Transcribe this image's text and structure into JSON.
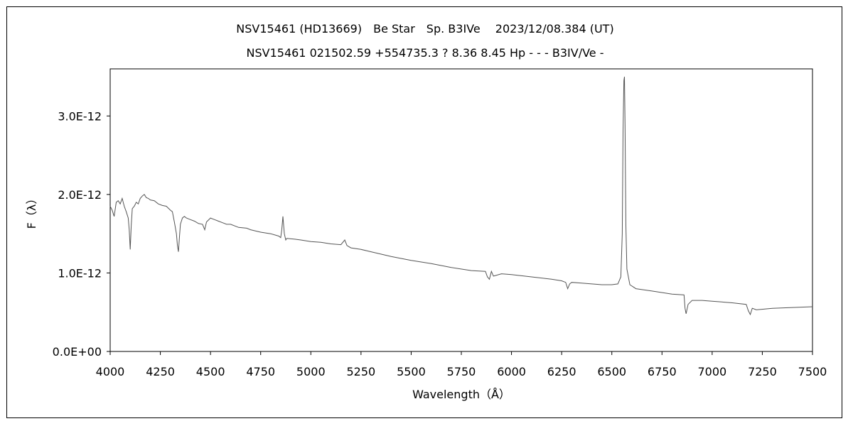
{
  "chart_data": {
    "type": "line",
    "title": "NSV15461 (HD13669)　Be Star　Sp. B3IVe　 2023/12/08.384 (UT)",
    "subtitle": "NSV15461 021502.59 +554735.3 ? 8.36 8.45 Hp - - - B3IV/Ve -",
    "xlabel": "Wavelength（Å）",
    "ylabel": "F（λ）",
    "xlim": [
      4000,
      7500
    ],
    "ylim": [
      0,
      3.6e-12
    ],
    "grid": false,
    "x_ticks": [
      4000,
      4250,
      4500,
      4750,
      5000,
      5250,
      5500,
      5750,
      6000,
      6250,
      6500,
      6750,
      7000,
      7250,
      7500
    ],
    "x_tick_labels": [
      "4000",
      "4250",
      "4500",
      "4750",
      "5000",
      "5250",
      "5500",
      "5750",
      "6000",
      "6250",
      "6500",
      "6750",
      "7000",
      "7250",
      "7500"
    ],
    "y_ticks": [
      0,
      1e-12,
      2e-12,
      3e-12
    ],
    "y_tick_labels": [
      "0.0E+00",
      "1.0E-12",
      "2.0E-12",
      "3.0E-12"
    ],
    "series": [
      {
        "color": "#555555",
        "x": [
          4000,
          4010,
          4020,
          4030,
          4040,
          4050,
          4060,
          4070,
          4080,
          4090,
          4095,
          4100,
          4105,
          4110,
          4120,
          4130,
          4140,
          4150,
          4160,
          4170,
          4180,
          4190,
          4200,
          4220,
          4240,
          4260,
          4280,
          4300,
          4310,
          4320,
          4330,
          4335,
          4340,
          4345,
          4350,
          4360,
          4370,
          4380,
          4400,
          4420,
          4440,
          4460,
          4471,
          4480,
          4500,
          4520,
          4540,
          4560,
          4580,
          4600,
          4640,
          4680,
          4700,
          4750,
          4800,
          4840,
          4850,
          4855,
          4861,
          4868,
          4875,
          4880,
          4920,
          4950,
          5000,
          5050,
          5100,
          5150,
          5169,
          5180,
          5200,
          5250,
          5300,
          5400,
          5500,
          5600,
          5700,
          5800,
          5870,
          5880,
          5890,
          5900,
          5910,
          5950,
          6000,
          6100,
          6200,
          6250,
          6270,
          6280,
          6290,
          6300,
          6350,
          6400,
          6450,
          6500,
          6530,
          6545,
          6552,
          6556,
          6560,
          6563,
          6566,
          6570,
          6575,
          6590,
          6620,
          6700,
          6800,
          6860,
          6865,
          6870,
          6880,
          6900,
          6950,
          7000,
          7100,
          7170,
          7180,
          7190,
          7200,
          7220,
          7300,
          7400,
          7500
        ],
        "values": [
          1.85e-12,
          1.8e-12,
          1.72e-12,
          1.9e-12,
          1.92e-12,
          1.88e-12,
          1.95e-12,
          1.85e-12,
          1.78e-12,
          1.7e-12,
          1.55e-12,
          1.3e-12,
          1.6e-12,
          1.82e-12,
          1.85e-12,
          1.9e-12,
          1.88e-12,
          1.95e-12,
          1.98e-12,
          2e-12,
          1.96e-12,
          1.95e-12,
          1.93e-12,
          1.92e-12,
          1.88e-12,
          1.86e-12,
          1.85e-12,
          1.8e-12,
          1.78e-12,
          1.65e-12,
          1.5e-12,
          1.35e-12,
          1.27e-12,
          1.45e-12,
          1.62e-12,
          1.7e-12,
          1.72e-12,
          1.7e-12,
          1.68e-12,
          1.66e-12,
          1.63e-12,
          1.62e-12,
          1.55e-12,
          1.65e-12,
          1.7e-12,
          1.68e-12,
          1.66e-12,
          1.64e-12,
          1.62e-12,
          1.62e-12,
          1.58e-12,
          1.57e-12,
          1.55e-12,
          1.52e-12,
          1.5e-12,
          1.47e-12,
          1.45e-12,
          1.55e-12,
          1.72e-12,
          1.5e-12,
          1.42e-12,
          1.44e-12,
          1.43e-12,
          1.42e-12,
          1.4e-12,
          1.39e-12,
          1.37e-12,
          1.36e-12,
          1.42e-12,
          1.35e-12,
          1.32e-12,
          1.3e-12,
          1.27e-12,
          1.21e-12,
          1.16e-12,
          1.12e-12,
          1.07e-12,
          1.03e-12,
          1.02e-12,
          9.5e-13,
          9.2e-13,
          1.02e-12,
          9.6e-13,
          9.9e-13,
          9.8e-13,
          9.5e-13,
          9.2e-13,
          9e-13,
          8.8e-13,
          8e-13,
          8.6e-13,
          8.8e-13,
          8.7e-13,
          8.6e-13,
          8.5e-13,
          8.5e-13,
          8.6e-13,
          9.5e-13,
          1.5e-12,
          2.8e-12,
          3.45e-12,
          3.5e-12,
          2.9e-12,
          1.6e-12,
          1.05e-12,
          8.5e-13,
          8e-13,
          7.7e-13,
          7.3e-13,
          7.2e-13,
          5.5e-13,
          4.8e-13,
          6e-13,
          6.5e-13,
          6.5e-13,
          6.4e-13,
          6.2e-13,
          6e-13,
          5.2e-13,
          4.7e-13,
          5.5e-13,
          5.3e-13,
          5.5e-13,
          5.6e-13,
          5.7e-13
        ]
      }
    ]
  }
}
